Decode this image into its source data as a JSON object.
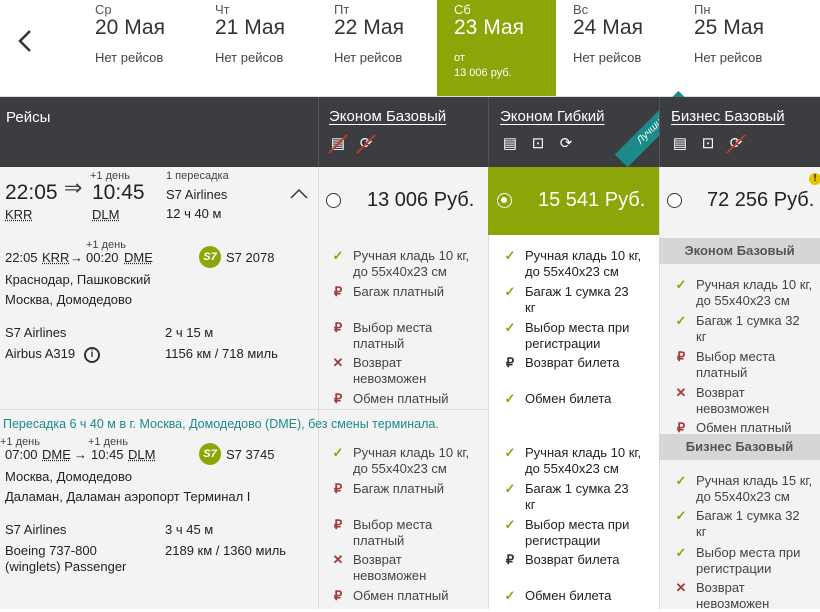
{
  "nav": {
    "back_icon": "chevron-left-icon"
  },
  "dates": [
    {
      "dow": "Ср",
      "date": "20 Мая",
      "note": "Нет рейсов"
    },
    {
      "dow": "Чт",
      "date": "21 Мая",
      "note": "Нет рейсов"
    },
    {
      "dow": "Пт",
      "date": "22 Мая",
      "note": "Нет рейсов"
    },
    {
      "dow": "Сб",
      "date": "23 Мая",
      "note": "от",
      "price": "13 006 руб."
    },
    {
      "dow": "Вс",
      "date": "24 Мая",
      "note": "Нет рейсов"
    },
    {
      "dow": "Пн",
      "date": "25 Мая",
      "note": "Нет рейсов"
    }
  ],
  "header": {
    "flights": "Рейсы",
    "fares": [
      {
        "name": "Эконом Базовый"
      },
      {
        "name": "Эконом Гибкий"
      },
      {
        "name": "Бизнес Базовый"
      }
    ],
    "best_badge": "Лучший!"
  },
  "summary": {
    "dep_time": "22:05",
    "arr_time": "10:45",
    "next_day": "+1 день",
    "dep_code": "KRR",
    "arr_code": "DLM",
    "stops": "1 пересадка",
    "airline": "S7 Airlines",
    "duration": "12 ч 40 м"
  },
  "prices": [
    {
      "value": "13 006 Руб."
    },
    {
      "value": "15 541 Руб."
    },
    {
      "value": "72 256 Руб."
    }
  ],
  "segment1": {
    "dep_time": "22:05",
    "dep_code": "KRR",
    "arrow": "→",
    "arr_time": "00:20",
    "arr_code": "DME",
    "next_day": "+1 день",
    "flight": "S7 2078",
    "from": "Краснодар, Пашковский",
    "to": "Москва, Домодедово",
    "airline": "S7 Airlines",
    "duration": "2 ч 15 м",
    "aircraft": "Airbus A319",
    "distance": "1156 км / 718 миль"
  },
  "transfer": "Пересадка 6 ч 40 м в г. Москва, Домодедово (DME), без смены терминала.",
  "segment2": {
    "dep_next_day": "+1 день",
    "arr_next_day": "+1 день",
    "dep_time": "07:00",
    "dep_code": "DME",
    "arrow": "→",
    "arr_time": "10:45",
    "arr_code": "DLM",
    "flight": "S7 3745",
    "from": "Москва, Домодедово",
    "to": "Даламан, Даламан аэропорт Терминал I",
    "airline": "S7 Airlines",
    "duration": "3 ч 45 м",
    "aircraft_l1": "Boeing 737-800",
    "aircraft_l2": "(winglets) Passenger",
    "distance": "2189 км / 1360 миль"
  },
  "col1_f1": [
    "Ручная кладь 10 кг,",
    "до 55х40х23 см",
    "Багаж платный",
    "Выбор места",
    "платный",
    "Возврат",
    "невозможен",
    "Обмен платный"
  ],
  "col2_f1": [
    "Ручная кладь 10 кг,",
    "до 55х40х23 см",
    "Багаж 1 сумка 23",
    "кг",
    "Выбор места при",
    "регистрации",
    "Возврат билета",
    "Обмен билета"
  ],
  "col3_f1": [
    "Эконом Базовый",
    "Ручная кладь 10 кг,",
    "до 55х40х23 см",
    "Багаж 1 сумка 32",
    "кг",
    "Выбор места",
    "платный",
    "Возврат",
    "невозможен",
    "Обмен платный",
    "Бизнес Базовый",
    "Ручная кладь 15 кг,",
    "до 55х40х23 см",
    "Багаж 1 сумка 32",
    "кг",
    "Выбор места при",
    "регистрации",
    "Возврат",
    "невозможен"
  ],
  "col1_f2": [
    "Ручная кладь 10 кг,",
    "до 55х40х23 см",
    "Багаж платный",
    "Выбор места",
    "платный",
    "Возврат",
    "невозможен",
    "Обмен платный"
  ],
  "col2_f2": [
    "Ручная кладь 10 кг,",
    "до 55х40х23 см",
    "Багаж 1 сумка 23",
    "кг",
    "Выбор места при",
    "регистрации",
    "Возврат билета",
    "Обмен билета"
  ],
  "exclaim": "!",
  "s7logo": "S7",
  "info_icon": "i",
  "colors": {
    "accent": "#8ea509",
    "header": "#3b3d40",
    "teal": "#1d8a8a"
  }
}
